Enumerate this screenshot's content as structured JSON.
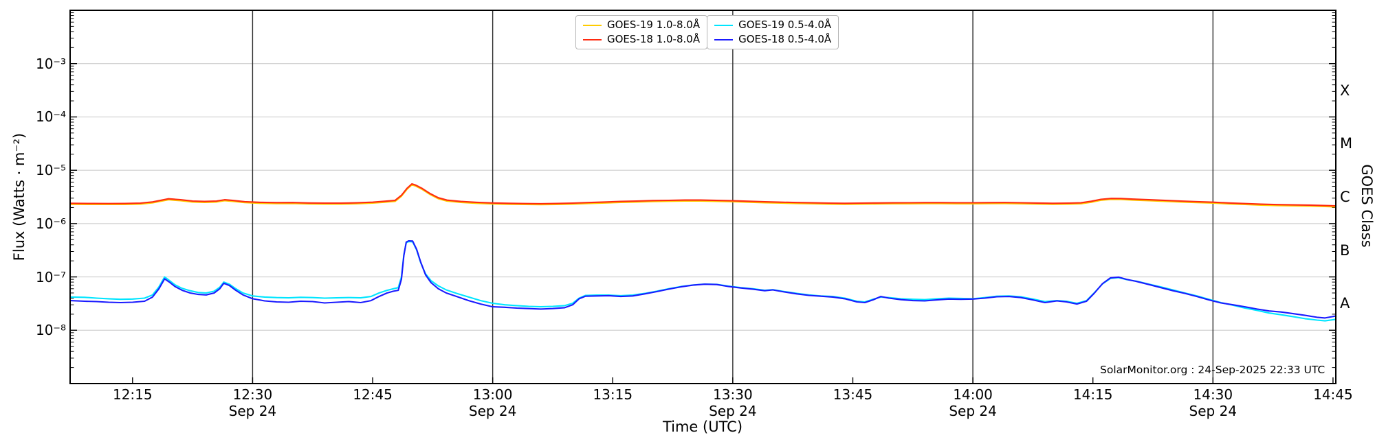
{
  "chart_data": {
    "type": "line",
    "title": "",
    "xlabel": "Time (UTC)",
    "ylabel": "Flux (Watts · m⁻²)",
    "annotation": "SolarMonitor.org : 24-Sep-2025 22:33 UTC",
    "grid": {
      "h_color": "#c6c6c6",
      "v_color": "#2e2e2e",
      "frame_color": "#000000"
    },
    "xlim_minutes": [
      7.2,
      165.35
    ],
    "ylim": [
      1e-09,
      0.01
    ],
    "x_ticks": [
      {
        "t": 15,
        "label": "12:15"
      },
      {
        "t": 30,
        "label": "12:30",
        "date": "Sep 24",
        "gridline": true
      },
      {
        "t": 45,
        "label": "12:45"
      },
      {
        "t": 60,
        "label": "13:00",
        "date": "Sep 24",
        "gridline": true
      },
      {
        "t": 75,
        "label": "13:15"
      },
      {
        "t": 90,
        "label": "13:30",
        "date": "Sep 24",
        "gridline": true
      },
      {
        "t": 105,
        "label": "13:45"
      },
      {
        "t": 120,
        "label": "14:00",
        "date": "Sep 24",
        "gridline": true
      },
      {
        "t": 135,
        "label": "14:15"
      },
      {
        "t": 150,
        "label": "14:30",
        "date": "Sep 24",
        "gridline": true
      },
      {
        "t": 165,
        "label": "14:45"
      }
    ],
    "y_ticks": [
      {
        "exp": -3,
        "label": "10⁻³"
      },
      {
        "exp": -4,
        "label": "10⁻⁴"
      },
      {
        "exp": -5,
        "label": "10⁻⁵"
      },
      {
        "exp": -6,
        "label": "10⁻⁶"
      },
      {
        "exp": -7,
        "label": "10⁻⁷"
      },
      {
        "exp": -8,
        "label": "10⁻⁸"
      }
    ],
    "right_axis": {
      "label": "GOES Class",
      "classes": [
        {
          "label": "X",
          "flux": 0.000316
        },
        {
          "label": "M",
          "flux": 3.16e-05
        },
        {
          "label": "C",
          "flux": 3.16e-06
        },
        {
          "label": "B",
          "flux": 3.16e-07
        },
        {
          "label": "A",
          "flux": 3.16e-08
        }
      ]
    },
    "series": [
      {
        "name": "GOES-19 1.0-8.0Å",
        "id": "goes19-long",
        "color": "#ffcc00",
        "flux_scale": 1e-06,
        "t": [
          7.2,
          10,
          12,
          14,
          16,
          17.5,
          19.5,
          21,
          22.5,
          24,
          25.5,
          26.5,
          27.5,
          29,
          31,
          33,
          35,
          37,
          39,
          41,
          43,
          45,
          46.5,
          47.8,
          48.6,
          49.3,
          49.9,
          50.4,
          51.2,
          52.2,
          53.2,
          54.3,
          56,
          58,
          60,
          62,
          64,
          66,
          68,
          70,
          72,
          74,
          76,
          78,
          80,
          82,
          84,
          86,
          88,
          90,
          92,
          94,
          96,
          98,
          100,
          102,
          104,
          106,
          108,
          110,
          112,
          114,
          116,
          118,
          120,
          122,
          124,
          126,
          128,
          130,
          132,
          133.5,
          134.8,
          136,
          137.3,
          138.5,
          140,
          142,
          144,
          146,
          148,
          150,
          152,
          154,
          156,
          158,
          160,
          162,
          164,
          165.35
        ],
        "flux": [
          2.3,
          2.28,
          2.28,
          2.28,
          2.32,
          2.45,
          2.8,
          2.69,
          2.54,
          2.5,
          2.54,
          2.69,
          2.61,
          2.48,
          2.4,
          2.37,
          2.38,
          2.34,
          2.32,
          2.32,
          2.35,
          2.42,
          2.52,
          2.61,
          3.26,
          4.42,
          5.33,
          5.04,
          4.37,
          3.5,
          2.93,
          2.64,
          2.5,
          2.4,
          2.34,
          2.3,
          2.28,
          2.27,
          2.28,
          2.32,
          2.38,
          2.44,
          2.5,
          2.54,
          2.59,
          2.62,
          2.65,
          2.65,
          2.61,
          2.57,
          2.52,
          2.46,
          2.42,
          2.38,
          2.35,
          2.32,
          2.3,
          2.32,
          2.34,
          2.35,
          2.36,
          2.37,
          2.37,
          2.36,
          2.36,
          2.37,
          2.38,
          2.36,
          2.33,
          2.3,
          2.32,
          2.35,
          2.52,
          2.74,
          2.84,
          2.83,
          2.76,
          2.69,
          2.61,
          2.54,
          2.48,
          2.42,
          2.34,
          2.28,
          2.22,
          2.18,
          2.15,
          2.13,
          2.09,
          2.06
        ]
      },
      {
        "name": "GOES-18 1.0-8.0Å",
        "id": "goes18-long",
        "color": "#ff2a10",
        "flux_scale": 1e-06,
        "t": [
          7.2,
          10,
          12,
          14,
          16,
          17.5,
          19.5,
          21,
          22.5,
          24,
          25.5,
          26.5,
          27.5,
          29,
          31,
          33,
          35,
          37,
          39,
          41,
          43,
          45,
          46.5,
          47.8,
          48.6,
          49.3,
          49.9,
          50.4,
          51.2,
          52.2,
          53.2,
          54.3,
          56,
          58,
          60,
          62,
          64,
          66,
          68,
          70,
          72,
          74,
          76,
          78,
          80,
          82,
          84,
          86,
          88,
          90,
          92,
          94,
          96,
          98,
          100,
          102,
          104,
          106,
          108,
          110,
          112,
          114,
          116,
          118,
          120,
          122,
          124,
          126,
          128,
          130,
          132,
          133.5,
          134.8,
          136,
          137.3,
          138.5,
          140,
          142,
          144,
          146,
          148,
          150,
          152,
          154,
          156,
          158,
          160,
          162,
          164,
          165.35
        ],
        "flux": [
          2.4,
          2.38,
          2.37,
          2.38,
          2.42,
          2.55,
          2.92,
          2.8,
          2.65,
          2.6,
          2.65,
          2.8,
          2.72,
          2.58,
          2.5,
          2.47,
          2.48,
          2.44,
          2.42,
          2.42,
          2.45,
          2.52,
          2.62,
          2.72,
          3.4,
          4.6,
          5.55,
          5.25,
          4.55,
          3.65,
          3.05,
          2.75,
          2.6,
          2.5,
          2.44,
          2.4,
          2.37,
          2.36,
          2.38,
          2.42,
          2.48,
          2.54,
          2.6,
          2.65,
          2.7,
          2.73,
          2.76,
          2.76,
          2.72,
          2.68,
          2.62,
          2.56,
          2.52,
          2.48,
          2.45,
          2.42,
          2.4,
          2.42,
          2.44,
          2.45,
          2.46,
          2.47,
          2.47,
          2.46,
          2.46,
          2.47,
          2.48,
          2.46,
          2.43,
          2.4,
          2.42,
          2.45,
          2.62,
          2.85,
          2.96,
          2.95,
          2.88,
          2.8,
          2.72,
          2.65,
          2.58,
          2.52,
          2.44,
          2.37,
          2.31,
          2.27,
          2.24,
          2.22,
          2.18,
          2.15
        ]
      },
      {
        "name": "GOES-19 0.5-4.0Å",
        "id": "goes19-short",
        "color": "#00e5ff",
        "flux_scale": 1e-08,
        "t": [
          7.2,
          9,
          10.5,
          12,
          13.5,
          15,
          16.5,
          17.5,
          18.3,
          19,
          19.6,
          20.3,
          21.2,
          22.2,
          23.2,
          24.2,
          25.2,
          25.9,
          26.4,
          27.1,
          27.9,
          28.8,
          30,
          31.5,
          33,
          34.5,
          36,
          37.5,
          39,
          40.5,
          42,
          43.5,
          44.8,
          45.8,
          46.8,
          47.6,
          48.2,
          48.6,
          48.9,
          49.2,
          49.5,
          50,
          50.5,
          51,
          51.6,
          52.3,
          53.2,
          54.2,
          55.5,
          57,
          58.5,
          60,
          61.5,
          63,
          64.5,
          66,
          67.5,
          69,
          70,
          70.8,
          71.6,
          73,
          74.5,
          76,
          77.5,
          79,
          80.5,
          82,
          83.5,
          85,
          86.5,
          88,
          89.5,
          91,
          92.5,
          94,
          95,
          96.5,
          98,
          99.5,
          101,
          102.5,
          104,
          105.5,
          106.5,
          107.5,
          108.5,
          109.5,
          111,
          112.5,
          114,
          115.5,
          117,
          118.5,
          120,
          121.5,
          123,
          124.5,
          126,
          127.5,
          129,
          130.5,
          131.7,
          133,
          134.2,
          135.2,
          136.2,
          137.2,
          138.2,
          139.2,
          140.5,
          142,
          143.5,
          145,
          146.5,
          148,
          149.5,
          151,
          152.5,
          154,
          155.5,
          157,
          158.5,
          160,
          161.5,
          163,
          164,
          165.35
        ],
        "flux": [
          4.2,
          4.15,
          4.0,
          3.9,
          3.8,
          3.85,
          4.0,
          4.6,
          6.5,
          10.0,
          8.6,
          7.1,
          6.1,
          5.5,
          5.1,
          5.0,
          5.4,
          6.4,
          8.0,
          7.3,
          6.0,
          5.0,
          4.4,
          4.2,
          4.1,
          4.05,
          4.15,
          4.1,
          4.0,
          4.05,
          4.1,
          4.05,
          4.3,
          5.0,
          5.6,
          6.0,
          6.3,
          10,
          26,
          44,
          46,
          45.5,
          32,
          18.5,
          11.5,
          8.5,
          6.8,
          5.7,
          4.9,
          4.2,
          3.6,
          3.2,
          3.0,
          2.9,
          2.8,
          2.75,
          2.8,
          2.9,
          3.2,
          4.0,
          4.5,
          4.55,
          4.55,
          4.45,
          4.55,
          4.9,
          5.4,
          6.0,
          6.6,
          7.05,
          7.35,
          7.25,
          6.7,
          6.3,
          6.0,
          5.6,
          5.75,
          5.3,
          4.9,
          4.6,
          4.4,
          4.3,
          4.0,
          3.5,
          3.4,
          3.8,
          4.2,
          4.1,
          3.9,
          3.8,
          3.75,
          3.9,
          4.0,
          3.95,
          3.9,
          4.1,
          4.35,
          4.4,
          4.25,
          3.85,
          3.45,
          3.6,
          3.5,
          3.2,
          3.6,
          5.1,
          7.4,
          9.4,
          9.7,
          8.9,
          8.3,
          7.3,
          6.5,
          5.7,
          5.0,
          4.4,
          3.8,
          3.3,
          2.95,
          2.6,
          2.35,
          2.1,
          1.95,
          1.8,
          1.65,
          1.55,
          1.5,
          1.6
        ]
      },
      {
        "name": "GOES-18 0.5-4.0Å",
        "id": "goes18-short",
        "color": "#1a1aff",
        "flux_scale": 1e-08,
        "t": [
          7.2,
          9,
          10.5,
          12,
          13.5,
          15,
          16.5,
          17.5,
          18.3,
          19,
          19.6,
          20.3,
          21.2,
          22.2,
          23.2,
          24.2,
          25.2,
          25.9,
          26.4,
          27.1,
          27.9,
          28.8,
          30,
          31.5,
          33,
          34.5,
          36,
          37.5,
          39,
          40.5,
          42,
          43.5,
          44.8,
          45.8,
          46.8,
          47.6,
          48.2,
          48.6,
          48.9,
          49.2,
          49.5,
          50,
          50.5,
          51,
          51.6,
          52.3,
          53.2,
          54.2,
          55.5,
          57,
          58.5,
          60,
          61.5,
          63,
          64.5,
          66,
          67.5,
          69,
          70,
          70.8,
          71.6,
          73,
          74.5,
          76,
          77.5,
          79,
          80.5,
          82,
          83.5,
          85,
          86.5,
          88,
          89.5,
          91,
          92.5,
          94,
          95,
          96.5,
          98,
          99.5,
          101,
          102.5,
          104,
          105.5,
          106.5,
          107.5,
          108.5,
          109.5,
          111,
          112.5,
          114,
          115.5,
          117,
          118.5,
          120,
          121.5,
          123,
          124.5,
          126,
          127.5,
          129,
          130.5,
          131.7,
          133,
          134.2,
          135.2,
          136.2,
          137.2,
          138.2,
          139.2,
          140.5,
          142,
          143.5,
          145,
          146.5,
          148,
          149.5,
          151,
          152.5,
          154,
          155.5,
          157,
          158.5,
          160,
          161.5,
          163,
          164,
          165.35
        ],
        "flux": [
          3.6,
          3.5,
          3.45,
          3.35,
          3.3,
          3.35,
          3.5,
          4.2,
          6.0,
          9.2,
          8.0,
          6.6,
          5.6,
          5.0,
          4.7,
          4.6,
          5.0,
          6.0,
          7.6,
          6.9,
          5.6,
          4.6,
          3.9,
          3.55,
          3.4,
          3.35,
          3.5,
          3.45,
          3.25,
          3.35,
          3.45,
          3.3,
          3.6,
          4.3,
          5.0,
          5.4,
          5.6,
          9,
          25,
          45,
          47.5,
          47,
          33,
          19,
          11,
          7.8,
          6.0,
          5.0,
          4.3,
          3.6,
          3.1,
          2.75,
          2.7,
          2.6,
          2.55,
          2.5,
          2.55,
          2.65,
          3.0,
          3.9,
          4.35,
          4.4,
          4.45,
          4.3,
          4.4,
          4.8,
          5.3,
          5.9,
          6.5,
          7.0,
          7.3,
          7.2,
          6.6,
          6.2,
          5.9,
          5.5,
          5.7,
          5.2,
          4.8,
          4.5,
          4.35,
          4.2,
          3.9,
          3.4,
          3.3,
          3.7,
          4.3,
          4.0,
          3.75,
          3.6,
          3.55,
          3.7,
          3.85,
          3.8,
          3.85,
          4.0,
          4.25,
          4.3,
          4.1,
          3.7,
          3.3,
          3.55,
          3.4,
          3.1,
          3.5,
          5.0,
          7.5,
          9.6,
          9.9,
          9.0,
          8.2,
          7.2,
          6.3,
          5.5,
          4.9,
          4.3,
          3.7,
          3.25,
          3.0,
          2.75,
          2.5,
          2.3,
          2.2,
          2.05,
          1.9,
          1.75,
          1.7,
          1.85
        ]
      }
    ]
  },
  "legend": {
    "columns": [
      [
        {
          "label": "GOES-19 1.0-8.0Å",
          "color": "#ffcc00"
        },
        {
          "label": "GOES-18 1.0-8.0Å",
          "color": "#ff2a10"
        }
      ],
      [
        {
          "label": "GOES-19 0.5-4.0Å",
          "color": "#00e5ff"
        },
        {
          "label": "GOES-18 0.5-4.0Å",
          "color": "#1a1aff"
        }
      ]
    ]
  }
}
